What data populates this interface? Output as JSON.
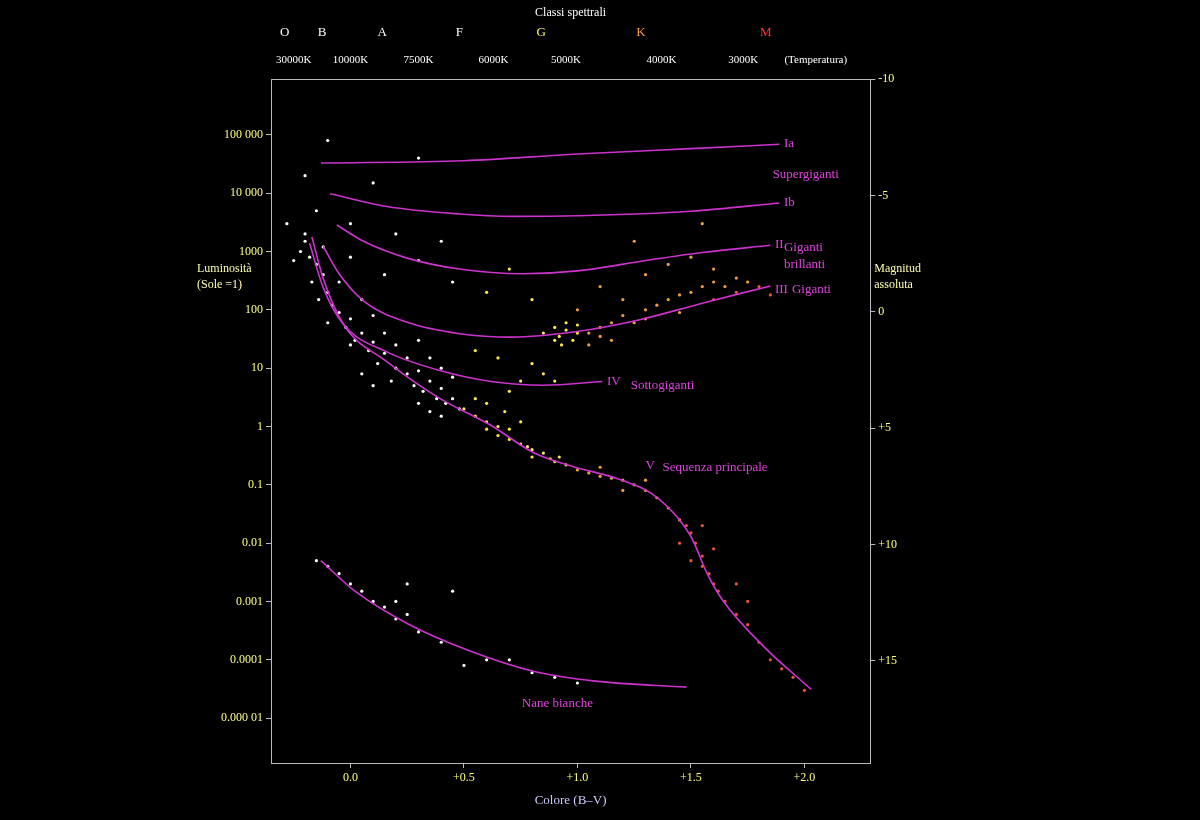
{
  "chart_data": {
    "type": "scatter",
    "xlabel": "Colore (B–V)",
    "ylabel": "Luminosità\n(Sole =1)",
    "y2label": "Magnitud\nassoluta",
    "log": "y",
    "grid": false,
    "xlim": [
      -0.35,
      2.29
    ],
    "xticks": [
      {
        "value": 0,
        "label": "0.0"
      },
      {
        "value": 0.5,
        "label": "+0.5"
      },
      {
        "value": 1,
        "label": "+1.0"
      },
      {
        "value": 1.5,
        "label": "+1.5"
      },
      {
        "value": 2,
        "label": "+2.0"
      }
    ],
    "ylim": [
      1.7e-06,
      900000
    ],
    "yticks": [
      {
        "value": 100000,
        "label": "100 000"
      },
      {
        "value": 10000,
        "label": "10 000"
      },
      1000,
      100,
      10,
      1,
      0.1,
      0.01,
      0.001,
      0.0001,
      {
        "value": 1e-05,
        "label": "0.000 01"
      }
    ],
    "y2lim": [
      -10,
      19.4
    ],
    "y2ticks": [
      -10,
      -5,
      0,
      {
        "value": 5,
        "label": "+5"
      },
      {
        "value": 10,
        "label": "+10"
      },
      {
        "value": 15,
        "label": "+15"
      }
    ],
    "spectral_classes": {
      "title": "Classi spettrali",
      "ticks": [
        {
          "value": -0.29,
          "label": "O"
        },
        {
          "value": -0.125,
          "label": "B"
        },
        {
          "value": 0.14,
          "label": "A"
        },
        {
          "value": 0.48,
          "label": "F"
        },
        {
          "value": 0.84,
          "label": "G"
        },
        {
          "value": 1.28,
          "label": "K"
        },
        {
          "value": 1.83,
          "label": "M"
        }
      ],
      "colors": [
        "#ffffff",
        "#ffffff",
        "#ffffff",
        "#ffffff",
        "#ffff66",
        "#ff9933",
        "#ff3333"
      ]
    },
    "temperatures": {
      "ticks": [
        {
          "value": -0.25,
          "label": "30000K"
        },
        {
          "value": 0,
          "label": "10000K"
        },
        {
          "value": 0.3,
          "label": "7500K"
        },
        {
          "value": 0.63,
          "label": "6000K"
        },
        {
          "value": 0.95,
          "label": "5000K"
        },
        {
          "value": 1.37,
          "label": "4000K"
        },
        {
          "value": 1.73,
          "label": "3000K"
        },
        {
          "value": 2.05,
          "label": "(Temperatura)"
        }
      ]
    },
    "series": [
      {
        "type": "scatter",
        "color": "#ffffff",
        "x": [
          -0.2,
          -0.18,
          -0.15,
          -0.17,
          -0.12,
          -0.1,
          -0.14,
          -0.08,
          -0.05,
          -0.1,
          -0.02,
          0.0,
          0.02,
          0.05,
          0.0,
          0.08,
          0.1,
          0.12,
          0.15,
          0.2,
          0.18,
          0.25,
          0.28,
          0.3,
          0.32,
          0.35,
          0.38,
          0.4,
          0.42,
          0.45,
          0.48,
          0.3,
          0.35,
          0.4,
          -0.2,
          -0.22,
          -0.12,
          -0.05,
          0.05,
          0.1,
          0.15,
          -0.25,
          0.2,
          0.25,
          0.3,
          0.35,
          0.4,
          0.45,
          0.05,
          0.1,
          -0.2,
          -0.15,
          0.0,
          0.1,
          0.2,
          0.3,
          0.4,
          0.45,
          -0.1,
          0.3,
          0.0,
          -0.28,
          0.15
        ],
        "values": [
          1500,
          800,
          600,
          300,
          400,
          200,
          150,
          120,
          90,
          60,
          50,
          70,
          30,
          40,
          25,
          20,
          28,
          12,
          18,
          10,
          6,
          8,
          5,
          9,
          4,
          6,
          3,
          4.5,
          2.5,
          3,
          2,
          2.5,
          1.8,
          1.5,
          2000,
          1000,
          1200,
          300,
          150,
          80,
          40,
          700,
          25,
          15,
          30,
          15,
          10,
          7,
          8,
          5,
          20000,
          5000,
          3000,
          15000,
          2000,
          700,
          1500,
          300,
          80000,
          40000,
          800,
          3000,
          400
        ]
      },
      {
        "type": "scatter",
        "color": "#ffffff",
        "x": [
          -0.15,
          -0.1,
          -0.05,
          0.0,
          0.05,
          0.1,
          0.15,
          0.2,
          0.2,
          0.25,
          0.25,
          0.3,
          0.4,
          0.45,
          0.5,
          0.6,
          0.7,
          0.8,
          0.9,
          1.0
        ],
        "values": [
          0.005,
          0.004,
          0.003,
          0.002,
          0.0015,
          0.001,
          0.0008,
          0.0005,
          0.001,
          0.0006,
          0.002,
          0.0003,
          0.0002,
          0.0015,
          8e-05,
          0.0001,
          0.0001,
          6e-05,
          5e-05,
          4e-05
        ]
      },
      {
        "type": "scatter",
        "color": "#ffe84a",
        "x": [
          0.5,
          0.55,
          0.6,
          0.6,
          0.65,
          0.65,
          0.7,
          0.7,
          0.75,
          0.78,
          0.8,
          0.8,
          0.85,
          0.88,
          0.9,
          0.92,
          0.95,
          0.55,
          0.6,
          0.68,
          0.75,
          0.9,
          0.92,
          0.95,
          0.98,
          1.0,
          0.95,
          0.9,
          1.0,
          0.85,
          0.93,
          0.8,
          0.85,
          0.75,
          0.7,
          0.9,
          0.6,
          0.7,
          0.8,
          0.55,
          0.65
        ],
        "values": [
          2.0,
          1.5,
          1.2,
          0.9,
          1.0,
          0.7,
          0.6,
          0.9,
          0.5,
          0.45,
          0.4,
          0.3,
          0.35,
          0.28,
          0.25,
          0.3,
          0.22,
          3,
          2.5,
          1.8,
          1.2,
          50,
          35,
          45,
          30,
          40,
          60,
          30,
          55,
          40,
          25,
          12,
          8,
          6,
          4,
          6,
          200,
          500,
          150,
          20,
          15
        ]
      },
      {
        "type": "scatter",
        "color": "#f0a040",
        "x": [
          1.05,
          1.1,
          1.15,
          1.1,
          1.2,
          1.25,
          1.3,
          1.35,
          1.4,
          1.45,
          1.5,
          1.55,
          1.6,
          1.65,
          1.7,
          1.75,
          1.2,
          1.3,
          1.4,
          1.5,
          1.6,
          1.05,
          1.15,
          1.3,
          1.45,
          1.0,
          1.1,
          1.25,
          1.55,
          1.0,
          1.05,
          1.1,
          1.15,
          1.2,
          1.25,
          1.3,
          1.35,
          1.4,
          1.45,
          1.1,
          1.2,
          1.3
        ],
        "values": [
          40,
          50,
          60,
          35,
          80,
          60,
          100,
          120,
          150,
          180,
          200,
          250,
          300,
          250,
          350,
          300,
          150,
          400,
          600,
          800,
          500,
          25,
          30,
          70,
          90,
          100,
          250,
          1500,
          3000,
          0.18,
          0.16,
          0.14,
          0.13,
          0.12,
          0.1,
          0.08,
          0.06,
          0.04,
          0.025,
          0.2,
          0.08,
          0.12
        ]
      },
      {
        "type": "scatter",
        "color": "#e8553a",
        "x": [
          1.5,
          1.52,
          1.55,
          1.48,
          1.55,
          1.58,
          1.6,
          1.62,
          1.65,
          1.7,
          1.75,
          1.8,
          1.85,
          1.9,
          1.95,
          2.0,
          1.6,
          1.5,
          1.7,
          1.45,
          1.55,
          1.75,
          1.8,
          1.85,
          1.7,
          1.6
        ],
        "values": [
          0.015,
          0.01,
          0.006,
          0.02,
          0.004,
          0.003,
          0.002,
          0.0015,
          0.001,
          0.0006,
          0.0004,
          0.0002,
          0.0001,
          7e-05,
          5e-05,
          3e-05,
          0.008,
          0.005,
          0.002,
          0.01,
          0.02,
          0.001,
          250,
          180,
          200,
          150
        ]
      },
      {
        "type": "line",
        "color": "#cc33cc",
        "x": [
          -0.13,
          0.5,
          1.0,
          1.5,
          1.89
        ],
        "values": [
          33000,
          36000,
          47000,
          58000,
          69000
        ]
      },
      {
        "type": "line",
        "color": "#cc33cc",
        "x": [
          -0.09,
          0.16,
          0.48,
          0.71,
          1.0,
          1.5,
          1.89
        ],
        "values": [
          9800,
          5900,
          4400,
          4000,
          4100,
          4900,
          6800
        ]
      },
      {
        "type": "line",
        "color": "#cc33cc",
        "x": [
          -0.06,
          0.06,
          0.25,
          0.48,
          0.76,
          1.0,
          1.31,
          1.55,
          1.85
        ],
        "values": [
          2850,
          1480,
          770,
          500,
          415,
          465,
          710,
          960,
          1280
        ]
      },
      {
        "type": "line",
        "color": "#cc33cc",
        "x": [
          -0.12,
          -0.05,
          0.06,
          0.25,
          0.48,
          0.71,
          0.99,
          1.27,
          1.55,
          1.85
        ],
        "values": [
          1230,
          415,
          140,
          61,
          39,
          34,
          42,
          67,
          130,
          257
        ]
      },
      {
        "type": "line",
        "color": "#cc33cc",
        "x": [
          -0.18,
          -0.12,
          -0.03,
          0.16,
          0.39,
          0.62,
          0.85,
          1.11
        ],
        "values": [
          1380,
          240,
          56,
          19,
          9.2,
          5.9,
          5.1,
          5.9
        ]
      },
      {
        "type": "line",
        "color": "#cc33cc",
        "x": [
          -0.17,
          -0.12,
          -0.03,
          0.16,
          0.39,
          0.62,
          0.81,
          0.99,
          1.18,
          1.36,
          1.5,
          1.57,
          1.64,
          1.82,
          2.03
        ],
        "values": [
          1780,
          345,
          56,
          13,
          3.1,
          1.04,
          0.35,
          0.2,
          0.126,
          0.057,
          0.013,
          0.0031,
          0.00105,
          0.00017,
          3.1e-05
        ]
      },
      {
        "type": "line",
        "color": "#cc33cc",
        "x": [
          -0.13,
          0.02,
          0.25,
          0.53,
          0.81,
          1.08,
          1.48
        ],
        "values": [
          0.005,
          0.0015,
          0.00042,
          0.00014,
          6.3e-05,
          4.3e-05,
          3.4e-05
        ]
      }
    ],
    "annotations": [
      {
        "text": "Ia",
        "x": 1.91,
        "y": 70000,
        "color": "#dd44dd"
      },
      {
        "text": "Supergiganti",
        "x": 1.86,
        "y": 21000,
        "color": "#dd44dd"
      },
      {
        "text": "Ib",
        "x": 1.91,
        "y": 7000,
        "color": "#dd44dd"
      },
      {
        "text": "II",
        "x": 1.87,
        "y": 1330,
        "color": "#dd44dd"
      },
      {
        "text": "Giganti\nbrillanti",
        "x": 1.91,
        "y": 830,
        "color": "#dd44dd"
      },
      {
        "text": "III",
        "x": 1.87,
        "y": 224,
        "color": "#dd44dd"
      },
      {
        "text": "Giganti",
        "x": 1.945,
        "y": 224,
        "color": "#dd44dd"
      },
      {
        "text": "IV",
        "x": 1.13,
        "y": 5.9,
        "color": "#dd44dd"
      },
      {
        "text": "Sottogiganti",
        "x": 1.235,
        "y": 5.1,
        "color": "#dd44dd"
      },
      {
        "text": "V",
        "x": 1.3,
        "y": 0.21,
        "color": "#dd44dd"
      },
      {
        "text": "Sequenza principale",
        "x": 1.375,
        "y": 0.195,
        "color": "#dd44dd"
      },
      {
        "text": "Nane bianche",
        "x": 0.755,
        "y": 1.8e-05,
        "color": "#dd44dd"
      }
    ]
  }
}
